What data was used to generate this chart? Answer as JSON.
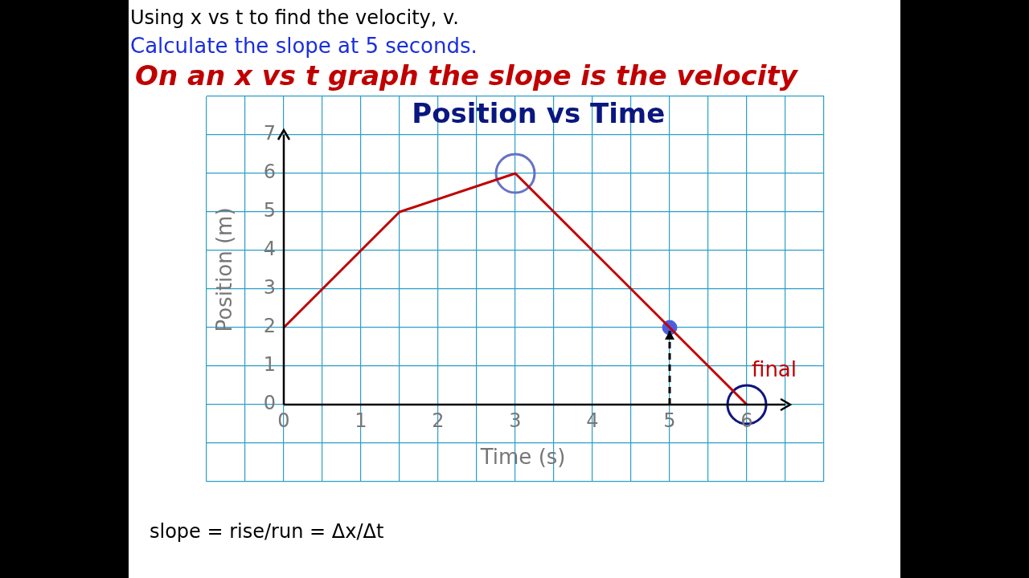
{
  "chart_data": {
    "type": "line",
    "title": "Position vs Time",
    "xlabel": "Time (s)",
    "ylabel": "Position (m)",
    "xlim": [
      -1,
      7
    ],
    "ylim": [
      -2,
      8
    ],
    "xticks": [
      {
        "value": -1,
        "label": null
      },
      {
        "value": -0.5,
        "label": null
      },
      0,
      {
        "value": 0.5,
        "label": null
      },
      1,
      {
        "value": 1.5,
        "label": null
      },
      2,
      {
        "value": 2.5,
        "label": null
      },
      3,
      {
        "value": 3.5,
        "label": null
      },
      4,
      {
        "value": 4.5,
        "label": null
      },
      5,
      {
        "value": 5.5,
        "label": null
      },
      6,
      {
        "value": 6.5,
        "label": null
      },
      {
        "value": 7,
        "label": null
      }
    ],
    "yticks": [
      {
        "value": -2,
        "label": null
      },
      {
        "value": -1,
        "label": null
      },
      0,
      1,
      2,
      3,
      4,
      5,
      6,
      7,
      {
        "value": 8,
        "label": null
      }
    ],
    "grid": true,
    "legend": false,
    "series": [
      {
        "color": "#c00000",
        "x": [
          0,
          1.5,
          3,
          6
        ],
        "values": [
          2,
          5,
          6,
          0
        ],
        "marker": "none",
        "line_style": "solid"
      },
      {
        "type": "line",
        "color": "#000000",
        "x": [
          5,
          5
        ],
        "values": [
          0,
          2
        ],
        "marker": "none",
        "line_style": "dashed"
      },
      {
        "type": "scatter",
        "colors": [
          "#6672c4",
          "#101580"
        ],
        "x": [
          3,
          6
        ],
        "values": [
          6,
          0
        ],
        "marker": "circle"
      },
      {
        "type": "scatter",
        "color": "#4a5ee0",
        "x": [
          5
        ],
        "values": [
          2
        ],
        "marker": "circle"
      }
    ],
    "annotations": [
      "Using x vs t to find the velocity, v.",
      "Calculate the slope at 5 seconds.",
      "On an x vs t graph the slope is the velocity",
      {
        "text": "final",
        "x": 6,
        "y": 0
      },
      "slope = rise/run = Δx/Δt"
    ]
  }
}
